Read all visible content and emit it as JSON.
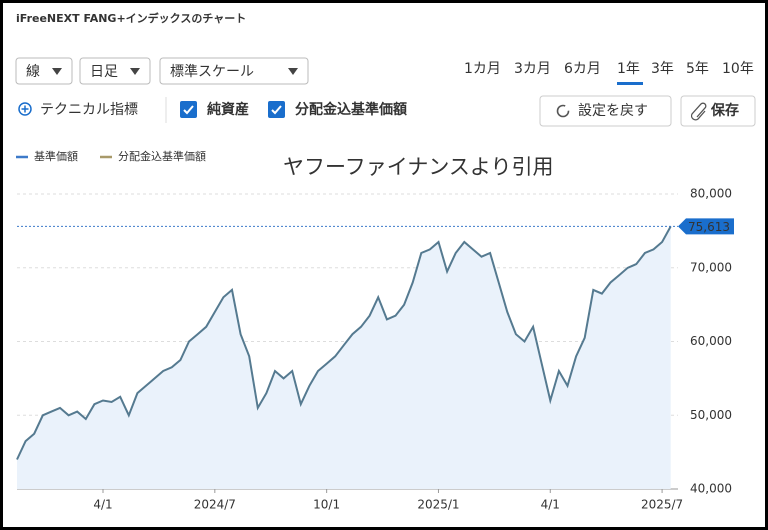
{
  "header": {
    "title": "iFreeNEXT FANG+インデックスのチャート"
  },
  "controls": {
    "dropdowns": [
      "線",
      "日足",
      "標準スケール"
    ],
    "periods": [
      "1カ月",
      "3カ月",
      "6カ月",
      "1年",
      "3年",
      "5年",
      "10年"
    ],
    "selected_period": "1年",
    "technical": "テクニカル指標",
    "checkboxes": [
      "純資産",
      "分配金込基準価額"
    ],
    "reset": "設定を戻す",
    "save": "保存"
  },
  "watermark": "ヤフーファイナンスより引用",
  "chart_data": {
    "type": "line",
    "legend_items": [
      {
        "name": "基準価額",
        "color": "#3d7ac9"
      },
      {
        "name": "分配金込基準価額",
        "color": "#a89a6a"
      }
    ],
    "categories": [
      null,
      null,
      null,
      null,
      null,
      null,
      null,
      null,
      null,
      null,
      "4/1",
      null,
      null,
      null,
      null,
      null,
      null,
      null,
      null,
      null,
      null,
      null,
      null,
      "2024/7",
      null,
      null,
      null,
      null,
      null,
      null,
      null,
      null,
      null,
      null,
      null,
      null,
      "10/1",
      null,
      null,
      null,
      null,
      null,
      null,
      null,
      null,
      null,
      null,
      null,
      null,
      "2025/1",
      null,
      null,
      null,
      null,
      null,
      null,
      null,
      null,
      null,
      null,
      null,
      null,
      "4/1",
      null,
      null,
      null,
      null,
      null,
      null,
      null,
      null,
      null,
      null,
      null,
      null,
      "2025/7",
      null
    ],
    "series": [
      {
        "name": "基準価額",
        "color": "#557a90",
        "values": [
          44000,
          46500,
          47500,
          50000,
          50500,
          51000,
          50000,
          50500,
          49500,
          51500,
          52000,
          51800,
          52500,
          50000,
          53000,
          54000,
          55000,
          56000,
          56500,
          57500,
          60000,
          61000,
          62000,
          64000,
          66000,
          67000,
          61000,
          58000,
          51000,
          53000,
          56000,
          55000,
          56000,
          51500,
          54000,
          56000,
          57000,
          58000,
          59500,
          61000,
          62000,
          63500,
          66000,
          63000,
          63500,
          65000,
          68000,
          72000,
          72500,
          73500,
          69500,
          72000,
          73500,
          72500,
          71500,
          72000,
          68000,
          64000,
          61000,
          60000,
          62000,
          57000,
          52000,
          56000,
          54000,
          58000,
          60500,
          67000,
          66500,
          68000,
          69000,
          70000,
          70500,
          72000,
          72500,
          73500,
          75613
        ]
      }
    ],
    "last_value_label": "75,613",
    "ylim": [
      40000,
      81500
    ],
    "yticks": [
      {
        "value": 40000,
        "label": "40,000"
      },
      {
        "value": 50000,
        "label": "50,000"
      },
      {
        "value": 60000,
        "label": "60,000"
      },
      {
        "value": 70000,
        "label": "70,000"
      },
      {
        "value": 80000,
        "label": "80,000"
      }
    ],
    "grid": true,
    "fill": "#eaf2fb"
  }
}
